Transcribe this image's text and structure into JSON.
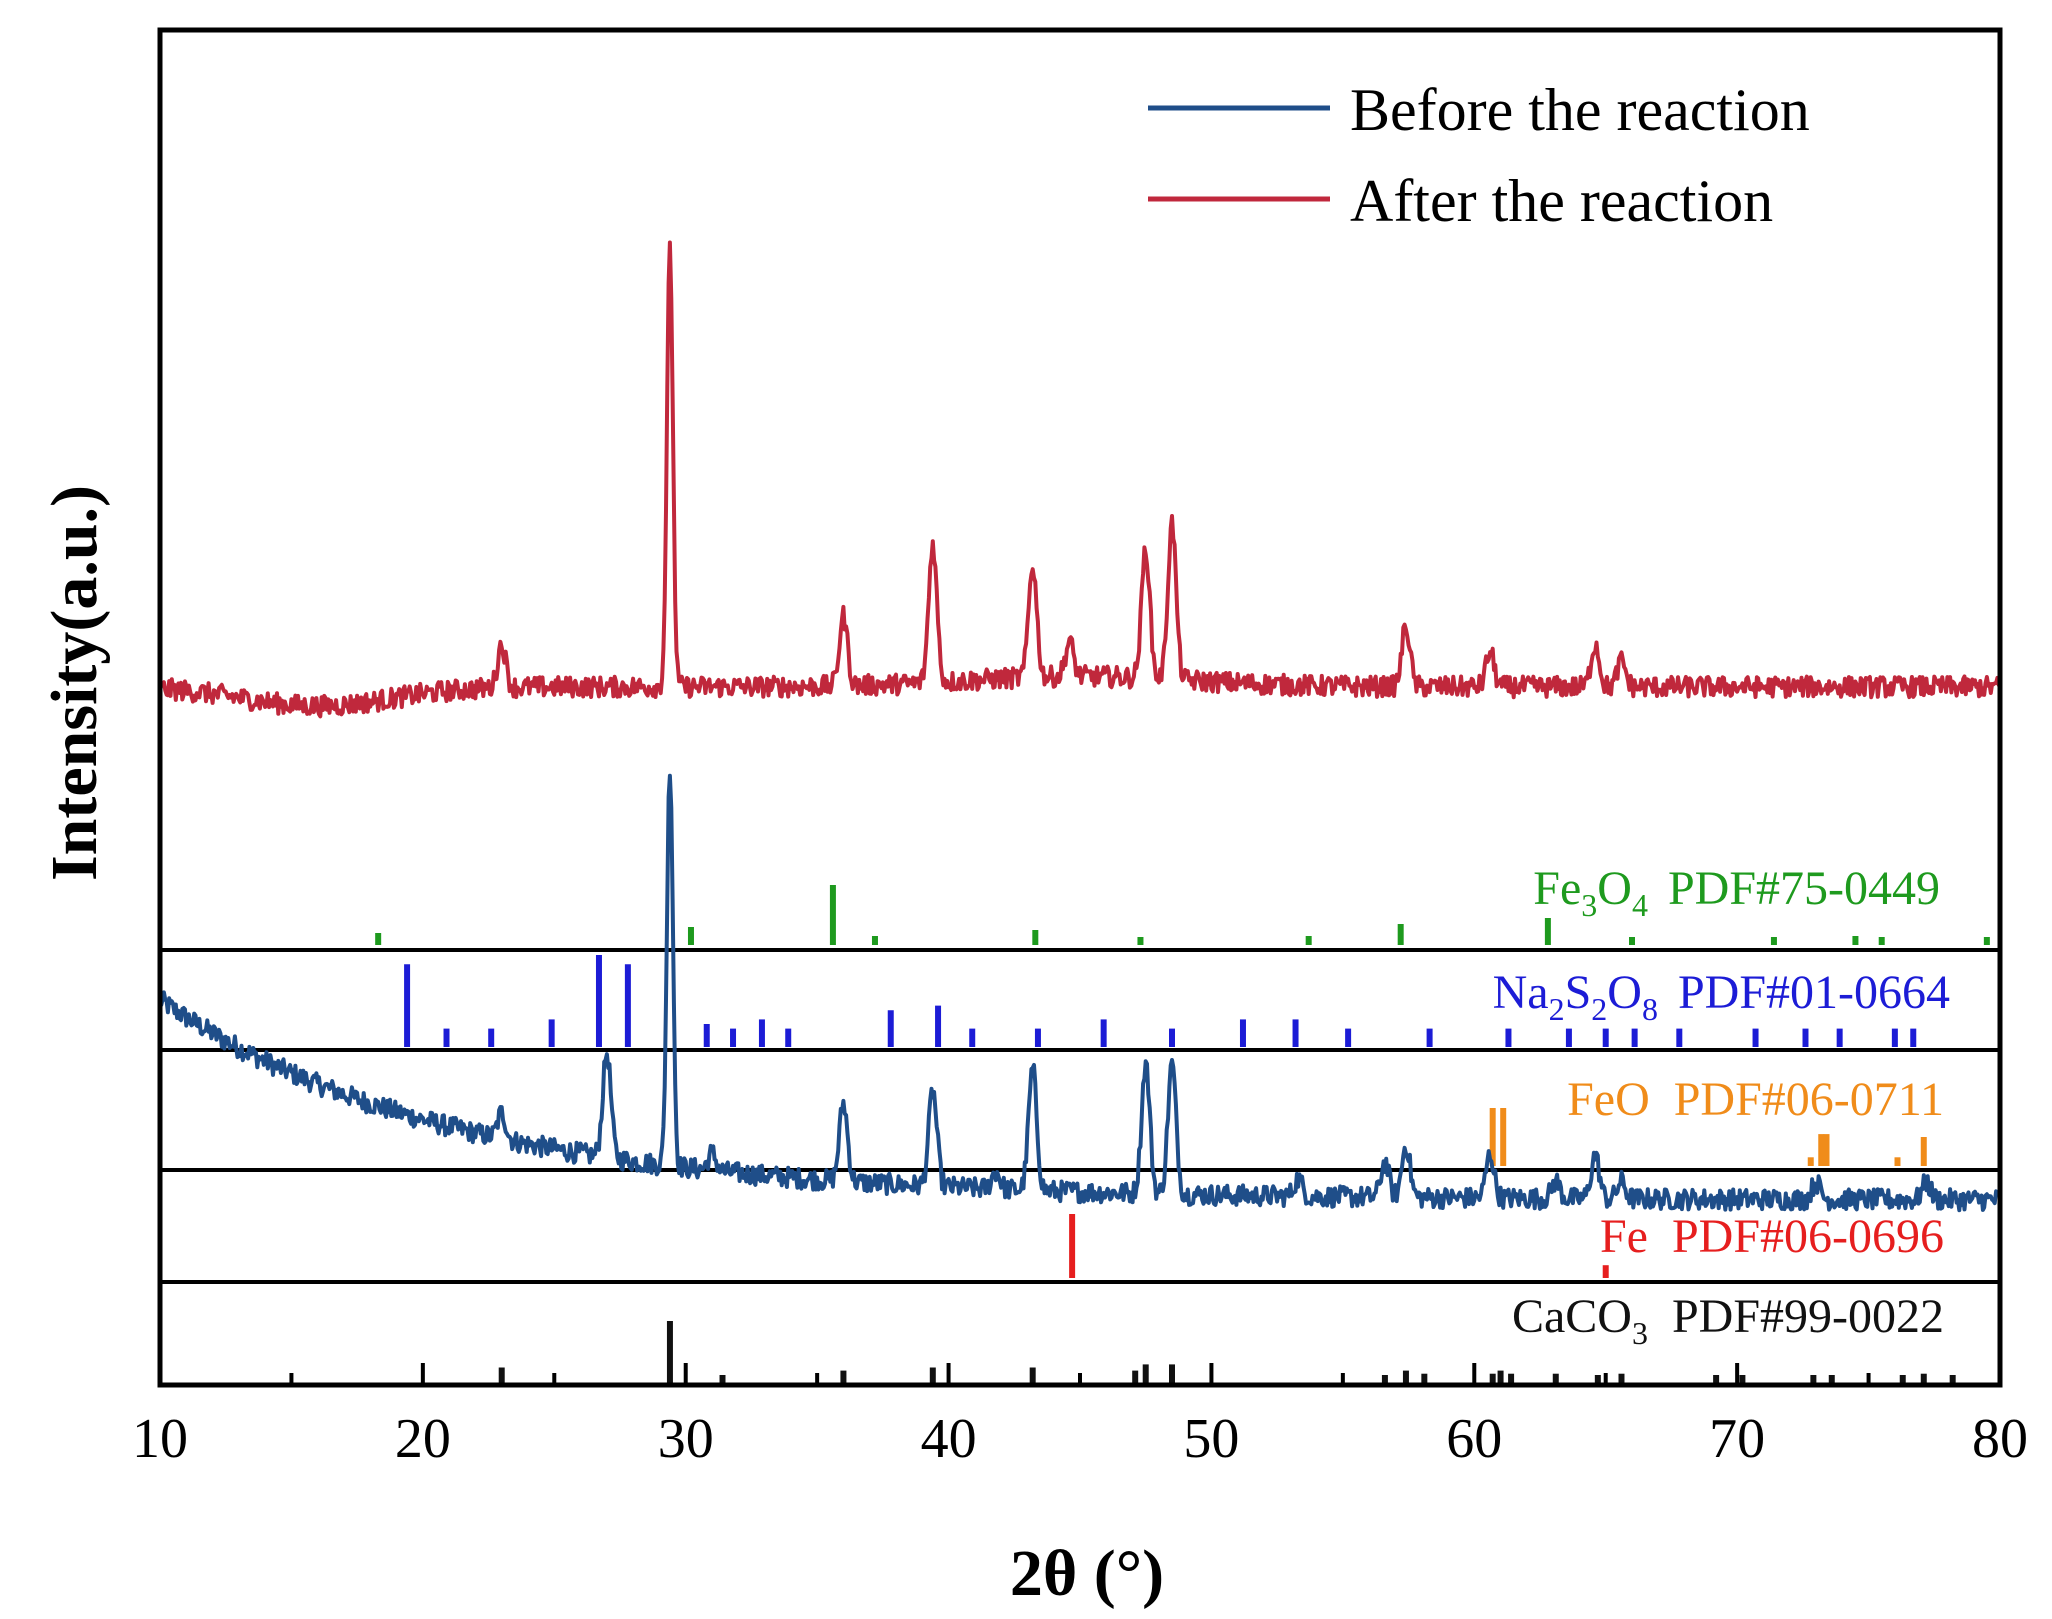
{
  "chart_data": {
    "type": "line",
    "title": "",
    "xlabel": "2θ (°)",
    "ylabel": "Intensity(a.u.)",
    "xlim": [
      10,
      80
    ],
    "x_ticks": [
      10,
      20,
      30,
      40,
      50,
      60,
      70,
      80
    ],
    "tick_labels": [
      "10",
      "20",
      "30",
      "40",
      "50",
      "60",
      "70",
      "80"
    ],
    "grid": false,
    "legend_position": "top-right",
    "series": [
      {
        "name": "Before the reaction",
        "color": "#1f4e89",
        "peak_2theta": [
          23.0,
          27.0,
          29.4,
          31.0,
          36.0,
          39.4,
          41.8,
          43.2,
          47.5,
          48.5,
          53.3,
          56.6,
          57.4,
          60.6,
          63.1,
          64.6,
          65.6,
          73.0,
          77.2
        ],
        "peak_intensity": [
          0.03,
          0.12,
          0.46,
          0.02,
          0.09,
          0.11,
          0.02,
          0.14,
          0.15,
          0.15,
          0.02,
          0.04,
          0.06,
          0.05,
          0.02,
          0.05,
          0.02,
          0.02,
          0.02
        ]
      },
      {
        "name": "After the reaction",
        "color": "#c0283c",
        "peak_2theta": [
          23.0,
          29.4,
          36.0,
          39.4,
          43.2,
          44.6,
          47.5,
          48.5,
          57.4,
          60.6,
          64.6,
          65.6
        ],
        "peak_intensity": [
          0.05,
          0.5,
          0.08,
          0.16,
          0.13,
          0.04,
          0.15,
          0.18,
          0.07,
          0.04,
          0.05,
          0.03
        ]
      }
    ],
    "reference_patterns": [
      {
        "phase": "Fe3O4",
        "phase_main": "Fe",
        "sub1": "3",
        "mid": "O",
        "sub2": "4",
        "pdf": "PDF#75-0449",
        "color": "#1e9a1e",
        "positions": [
          18.3,
          30.2,
          35.6,
          37.2,
          43.3,
          47.3,
          53.7,
          57.2,
          62.8,
          66.0,
          71.4,
          74.5,
          75.5,
          79.5
        ],
        "intensities": [
          0.2,
          0.3,
          1.0,
          0.15,
          0.25,
          0.1,
          0.15,
          0.35,
          0.45,
          0.1,
          0.1,
          0.15,
          0.1,
          0.1
        ]
      },
      {
        "phase": "Na2S2O8",
        "phase_main": "Na",
        "sub1": "2",
        "mid": "S",
        "sub2": "2",
        "end": "O",
        "sub3": "8",
        "pdf": "PDF#01-0664",
        "color": "#1c1cd6",
        "positions": [
          19.4,
          20.9,
          22.6,
          24.9,
          26.7,
          27.8,
          30.8,
          31.8,
          32.9,
          33.9,
          37.8,
          39.6,
          40.9,
          43.4,
          45.9,
          48.5,
          51.2,
          53.2,
          55.2,
          58.3,
          61.3,
          63.6,
          65.0,
          66.1,
          67.8,
          70.7,
          72.6,
          73.9,
          76.0,
          76.7
        ],
        "intensities": [
          0.9,
          0.2,
          0.2,
          0.3,
          1.0,
          0.9,
          0.25,
          0.2,
          0.3,
          0.2,
          0.4,
          0.45,
          0.2,
          0.2,
          0.3,
          0.2,
          0.3,
          0.3,
          0.2,
          0.2,
          0.2,
          0.2,
          0.2,
          0.2,
          0.2,
          0.2,
          0.2,
          0.2,
          0.2,
          0.2
        ]
      },
      {
        "phase": "FeO",
        "phase_main": "FeO",
        "pdf": "PDF#06-0711",
        "color": "#f08c1a",
        "positions": [
          60.7,
          61.1,
          72.8,
          73.2,
          73.4,
          76.1,
          77.1
        ],
        "intensities": [
          1.0,
          1.0,
          0.15,
          0.55,
          0.55,
          0.15,
          0.5
        ]
      },
      {
        "phase": "Fe",
        "phase_main": "Fe",
        "pdf": "PDF#06-0696",
        "color": "#e61e1e",
        "positions": [
          44.7,
          65.0
        ],
        "intensities": [
          1.0,
          0.2
        ]
      },
      {
        "phase": "CaCO3",
        "phase_main": "CaCO",
        "sub1": "3",
        "pdf": "PDF#99-0022",
        "color": "#111111",
        "positions": [
          23.0,
          29.4,
          31.4,
          36.0,
          39.4,
          43.2,
          47.1,
          47.5,
          48.5,
          56.6,
          57.4,
          58.1,
          60.7,
          61.0,
          61.4,
          63.1,
          64.7,
          65.6,
          69.2,
          70.2,
          72.9,
          73.6,
          76.3,
          77.1,
          78.2
        ],
        "intensities": [
          0.25,
          1.0,
          0.12,
          0.2,
          0.25,
          0.25,
          0.2,
          0.3,
          0.3,
          0.1,
          0.2,
          0.15,
          0.15,
          0.2,
          0.15,
          0.15,
          0.1,
          0.15,
          0.1,
          0.1,
          0.1,
          0.1,
          0.1,
          0.15,
          0.1
        ]
      }
    ]
  }
}
